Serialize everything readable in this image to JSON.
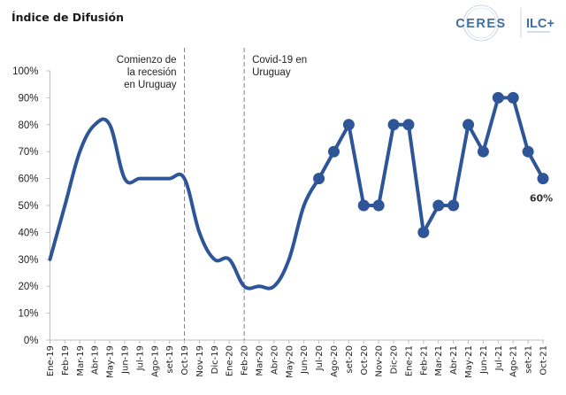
{
  "header": {
    "title": "Índice de Difusión"
  },
  "logo": {
    "left_text": "CERES",
    "right_text": "ILC+",
    "brand_color": "#3d6ea5"
  },
  "chart_data": {
    "type": "line",
    "title": "Índice de Difusión",
    "xlabel": "",
    "ylabel": "",
    "ylim": [
      0,
      100
    ],
    "y_ticks": [
      "0%",
      "10%",
      "20%",
      "30%",
      "40%",
      "50%",
      "60%",
      "70%",
      "80%",
      "90%",
      "100%"
    ],
    "categories": [
      "Ene-19",
      "Feb-19",
      "Mar-19",
      "Abr-19",
      "May-19",
      "Jun-19",
      "Jul-19",
      "Ago-19",
      "set-19",
      "Oct-19",
      "Nov-19",
      "Dic-19",
      "Ene-20",
      "Feb-20",
      "Mar-20",
      "Abr-20",
      "May-20",
      "Jun-20",
      "Jul-20",
      "Ago-20",
      "set-20",
      "Oct-20",
      "Nov-20",
      "Dic-20",
      "Ene-21",
      "Feb-21",
      "Mar-21",
      "Abr-21",
      "May-21",
      "Jun-21",
      "Jul-21",
      "Ago-21",
      "set-21",
      "Oct-21"
    ],
    "series": [
      {
        "name": "Índice de Difusión",
        "color": "#2e5597",
        "values": [
          30,
          50,
          70,
          80,
          80,
          60,
          60,
          60,
          60,
          60,
          40,
          30,
          30,
          20,
          20,
          20,
          30,
          50,
          60,
          70,
          80,
          50,
          50,
          80,
          80,
          40,
          50,
          50,
          80,
          70,
          90,
          90,
          70,
          60
        ],
        "markers_from_index": 18
      }
    ],
    "annotations": [
      {
        "category": "Oct-19",
        "lines": [
          "Comienzo de",
          "la recesión",
          "en Uruguay"
        ]
      },
      {
        "category": "Feb-20",
        "lines": [
          "Covid-19 en",
          "Uruguay"
        ]
      }
    ],
    "last_value_label": "60%",
    "grid": false,
    "legend": "none"
  }
}
